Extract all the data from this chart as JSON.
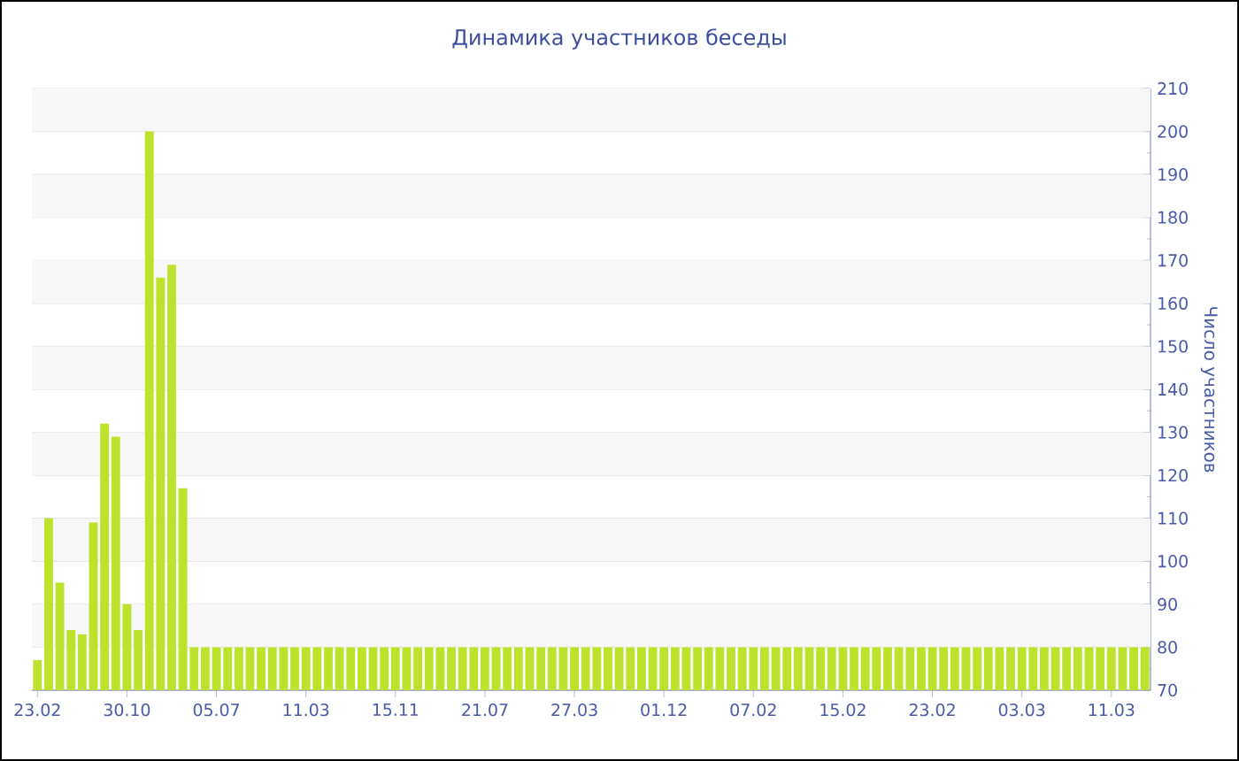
{
  "chart_data": {
    "type": "bar",
    "title": "Динамика участников беседы",
    "ylabel": "Число участников",
    "categories": [
      "23.02",
      null,
      null,
      null,
      null,
      null,
      null,
      null,
      "30.10",
      null,
      null,
      null,
      null,
      null,
      null,
      null,
      "05.07",
      null,
      null,
      null,
      null,
      null,
      null,
      null,
      "11.03",
      null,
      null,
      null,
      null,
      null,
      null,
      null,
      "15.11",
      null,
      null,
      null,
      null,
      null,
      null,
      null,
      "21.07",
      null,
      null,
      null,
      null,
      null,
      null,
      null,
      "27.03",
      null,
      null,
      null,
      null,
      null,
      null,
      null,
      "01.12",
      null,
      null,
      null,
      null,
      null,
      null,
      null,
      "07.02",
      null,
      null,
      null,
      null,
      null,
      null,
      null,
      "15.02",
      null,
      null,
      null,
      null,
      null,
      null,
      null,
      "23.02",
      null,
      null,
      null,
      null,
      null,
      null,
      null,
      "03.03",
      null,
      null,
      null,
      null,
      null,
      null,
      null,
      "11.03",
      null,
      null,
      null
    ],
    "values": [
      77,
      110,
      95,
      84,
      83,
      109,
      132,
      129,
      90,
      84,
      200,
      166,
      169,
      117,
      80,
      80,
      80,
      80,
      80,
      80,
      80,
      80,
      80,
      80,
      80,
      80,
      80,
      80,
      80,
      80,
      80,
      80,
      80,
      80,
      80,
      80,
      80,
      80,
      80,
      80,
      80,
      80,
      80,
      80,
      80,
      80,
      80,
      80,
      80,
      80,
      80,
      80,
      80,
      80,
      80,
      80,
      80,
      80,
      80,
      80,
      80,
      80,
      80,
      80,
      80,
      80,
      80,
      80,
      80,
      80,
      80,
      80,
      80,
      80,
      80,
      80,
      80,
      80,
      80,
      80,
      80,
      80,
      80,
      80,
      80,
      80,
      80,
      80,
      80,
      80,
      80,
      80,
      80,
      80,
      80,
      80,
      80,
      80,
      80,
      80
    ],
    "color": "#bde22b",
    "ylim": [
      70,
      210
    ],
    "yticks": [
      70,
      80,
      90,
      100,
      110,
      120,
      130,
      140,
      150,
      160,
      170,
      180,
      190,
      200,
      210
    ],
    "grid": "y"
  }
}
